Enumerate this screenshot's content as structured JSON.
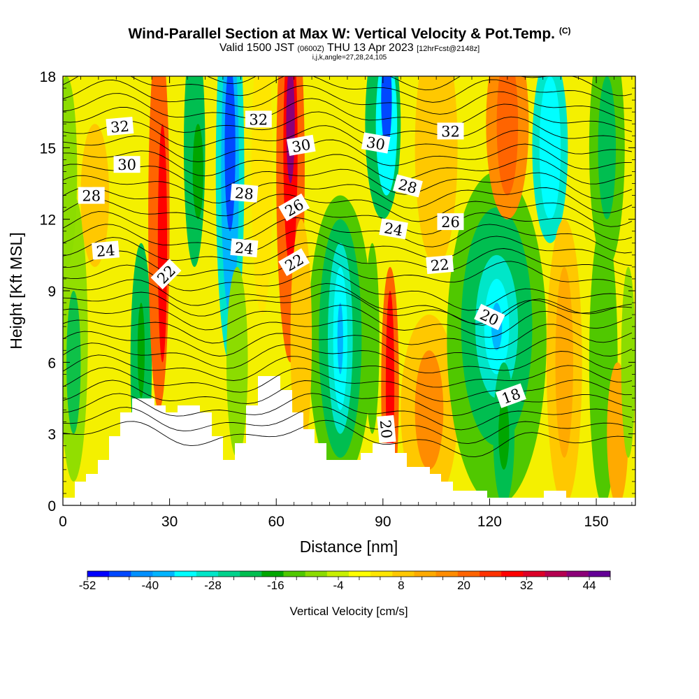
{
  "titles": {
    "main": "Wind-Parallel Section at Max W: Vertical Velocity & Pot.Temp.",
    "copyright": "(C)",
    "valid_prefix": "Valid 1500 JST",
    "valid_utc": "(0600Z)",
    "valid_date": "THU 13 Apr 2023",
    "forecast": "[12hrFcst@2148z]",
    "indices": "i,j,k,angle=27,28,24,105"
  },
  "chart_data": {
    "type": "heatmap",
    "xlabel": "Distance [nm]",
    "ylabel": "Height [Kft MSL]",
    "xlim": [
      0,
      161
    ],
    "ylim": [
      0,
      18
    ],
    "xticks": [
      0,
      30,
      60,
      90,
      120,
      150
    ],
    "yticks": [
      0,
      3,
      6,
      9,
      12,
      15,
      18
    ],
    "colorbar": {
      "label": "Vertical Velocity [cm/s]",
      "min": -52,
      "max": 48,
      "step": 4,
      "tick_labels": [
        -52,
        -40,
        -28,
        -16,
        -4,
        8,
        20,
        32,
        44
      ],
      "colors": [
        "#0000ff",
        "#0048ff",
        "#0090ff",
        "#00b4ff",
        "#00ffff",
        "#00e6c8",
        "#00d28c",
        "#00be50",
        "#00a600",
        "#50c800",
        "#8cdc00",
        "#c8f000",
        "#ffff00",
        "#ffe600",
        "#ffc800",
        "#ffaa00",
        "#ff8c00",
        "#ff6400",
        "#ff3200",
        "#ff0000",
        "#dc0028",
        "#b40050",
        "#8c0078",
        "#640096"
      ]
    },
    "theta_contour_labels": [
      {
        "x": 16,
        "y": 15.9,
        "value": "32"
      },
      {
        "x": 18,
        "y": 14.3,
        "value": "30"
      },
      {
        "x": 8,
        "y": 13.0,
        "value": "28"
      },
      {
        "x": 12,
        "y": 10.7,
        "value": "24"
      },
      {
        "x": 29,
        "y": 9.7,
        "value": "22"
      },
      {
        "x": 55,
        "y": 16.2,
        "value": "32"
      },
      {
        "x": 67,
        "y": 15.1,
        "value": "30"
      },
      {
        "x": 51,
        "y": 13.1,
        "value": "28"
      },
      {
        "x": 65,
        "y": 12.5,
        "value": "26"
      },
      {
        "x": 51,
        "y": 10.8,
        "value": "24"
      },
      {
        "x": 65,
        "y": 10.2,
        "value": "22"
      },
      {
        "x": 88,
        "y": 15.2,
        "value": "30"
      },
      {
        "x": 97,
        "y": 13.4,
        "value": "28"
      },
      {
        "x": 93,
        "y": 11.6,
        "value": "24"
      },
      {
        "x": 109,
        "y": 15.7,
        "value": "32"
      },
      {
        "x": 109,
        "y": 11.9,
        "value": "26"
      },
      {
        "x": 106,
        "y": 10.1,
        "value": "22"
      },
      {
        "x": 120,
        "y": 7.9,
        "value": "20"
      },
      {
        "x": 126,
        "y": 4.6,
        "value": "18"
      },
      {
        "x": 91,
        "y": 3.2,
        "value": "20"
      }
    ]
  }
}
